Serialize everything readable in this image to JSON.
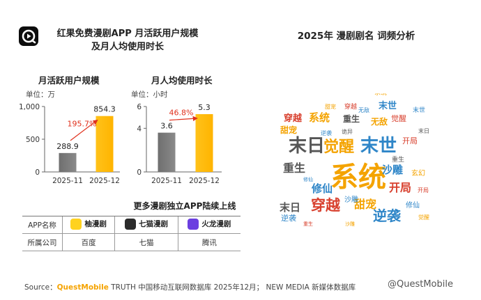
{
  "header": {
    "title_line1": "红果免费漫剧APP 月活跃用户规模",
    "title_line2": "及月人均使用时长",
    "right_title": "2025年 漫剧剧名 词频分析"
  },
  "colors": {
    "gray_bar": "#8a8a8a",
    "gold_bar": "#ffb400",
    "arrow": "#e0311d",
    "growth_label": "#e0311d",
    "brand_orange": "#f5a300"
  },
  "chart_data": [
    {
      "type": "bar",
      "title": "月活跃用户规模",
      "unit": "单位：万",
      "categories": [
        "2025-11",
        "2025-12"
      ],
      "values": [
        288.9,
        854.3
      ],
      "value_labels": [
        "288.9",
        "854.3"
      ],
      "ylim": [
        0,
        1000
      ],
      "yticks": [
        0,
        500,
        1000
      ],
      "ytick_labels": [
        "0",
        "500",
        "1,000"
      ],
      "growth_label": "195.7%"
    },
    {
      "type": "bar",
      "title": "月人均使用时长",
      "unit": "单位：小时",
      "categories": [
        "2025-11",
        "2025-12"
      ],
      "values": [
        3.6,
        5.3
      ],
      "value_labels": [
        "3.6",
        "5.3"
      ],
      "ylim": [
        0,
        6
      ],
      "yticks": [
        0,
        4,
        6
      ],
      "ytick_labels": [
        "0",
        "4",
        "6"
      ],
      "growth_label": "46.8%"
    }
  ],
  "apps": {
    "title": "更多漫剧独立APP陆续上线",
    "header_label": "APP名称",
    "company_label": "所属公司",
    "items": [
      {
        "name": "柚漫剧",
        "company": "百度",
        "icon_color": "#ffd21f"
      },
      {
        "name": "七猫漫剧",
        "company": "七猫",
        "icon_color": "#2b2b2b"
      },
      {
        "name": "火龙漫剧",
        "company": "腾讯",
        "icon_color": "#6b3fe0"
      }
    ]
  },
  "wordcloud": {
    "words": [
      {
        "text": "系统",
        "color": "#f4a300",
        "size": 40
      },
      {
        "text": "末日",
        "color": "#555555",
        "size": 26
      },
      {
        "text": "末世",
        "color": "#2f86c8",
        "size": 26
      },
      {
        "text": "觉醒",
        "color": "#f4a300",
        "size": 22
      },
      {
        "text": "穿越",
        "color": "#d8402e",
        "size": 21
      },
      {
        "text": "逆袭",
        "color": "#2f86c8",
        "size": 20
      },
      {
        "text": "重生",
        "color": "#555555",
        "size": 16
      },
      {
        "text": "甜宠",
        "color": "#f4a300",
        "size": 16
      },
      {
        "text": "开局",
        "color": "#d8402e",
        "size": 16
      },
      {
        "text": "沙雕",
        "color": "#2f86c8",
        "size": 15
      },
      {
        "text": "修仙",
        "color": "#2f86c8",
        "size": 15
      },
      {
        "text": "末日",
        "color": "#555555",
        "size": 15
      },
      {
        "text": "系统",
        "color": "#f4a300",
        "size": 15
      },
      {
        "text": "穿越",
        "color": "#d8402e",
        "size": 13
      },
      {
        "text": "末世",
        "color": "#2f86c8",
        "size": 13
      },
      {
        "text": "甜宠",
        "color": "#f4a300",
        "size": 12
      },
      {
        "text": "无敌",
        "color": "#f4a300",
        "size": 12
      },
      {
        "text": "重生",
        "color": "#555555",
        "size": 12
      },
      {
        "text": "觉醒",
        "color": "#d8402e",
        "size": 11
      },
      {
        "text": "开局",
        "color": "#d8402e",
        "size": 11
      },
      {
        "text": "逆袭",
        "color": "#2f86c8",
        "size": 11
      },
      {
        "text": "沙雕",
        "color": "#2f86c8",
        "size": 10
      },
      {
        "text": "玄幻",
        "color": "#f4a300",
        "size": 10
      },
      {
        "text": "修仙",
        "color": "#2f86c8",
        "size": 10
      },
      {
        "text": "末世",
        "color": "#2f86c8",
        "size": 9
      },
      {
        "text": "系统",
        "color": "#f4a300",
        "size": 9
      },
      {
        "text": "重生",
        "color": "#555555",
        "size": 9
      },
      {
        "text": "穿越",
        "color": "#d8402e",
        "size": 9
      },
      {
        "text": "甜宠",
        "color": "#f4a300",
        "size": 8
      },
      {
        "text": "开局",
        "color": "#d8402e",
        "size": 8
      },
      {
        "text": "觉醒",
        "color": "#f4a300",
        "size": 8
      },
      {
        "text": "无敌",
        "color": "#2f86c8",
        "size": 8
      },
      {
        "text": "逆袭",
        "color": "#2f86c8",
        "size": 8
      },
      {
        "text": "诡异",
        "color": "#555555",
        "size": 8
      },
      {
        "text": "末日",
        "color": "#555555",
        "size": 8
      },
      {
        "text": "修仙",
        "color": "#2f86c8",
        "size": 7
      },
      {
        "text": "沙雕",
        "color": "#f4a300",
        "size": 7
      },
      {
        "text": "重生",
        "color": "#d8402e",
        "size": 7
      }
    ]
  },
  "footer": {
    "source_prefix": "Source：",
    "source_brand": "QuestMobile",
    "source_text": " TRUTH 中国移动互联网数据库 2025年12月； NEW MEDIA 新媒体数据库",
    "watermark": "@QuestMobile"
  }
}
